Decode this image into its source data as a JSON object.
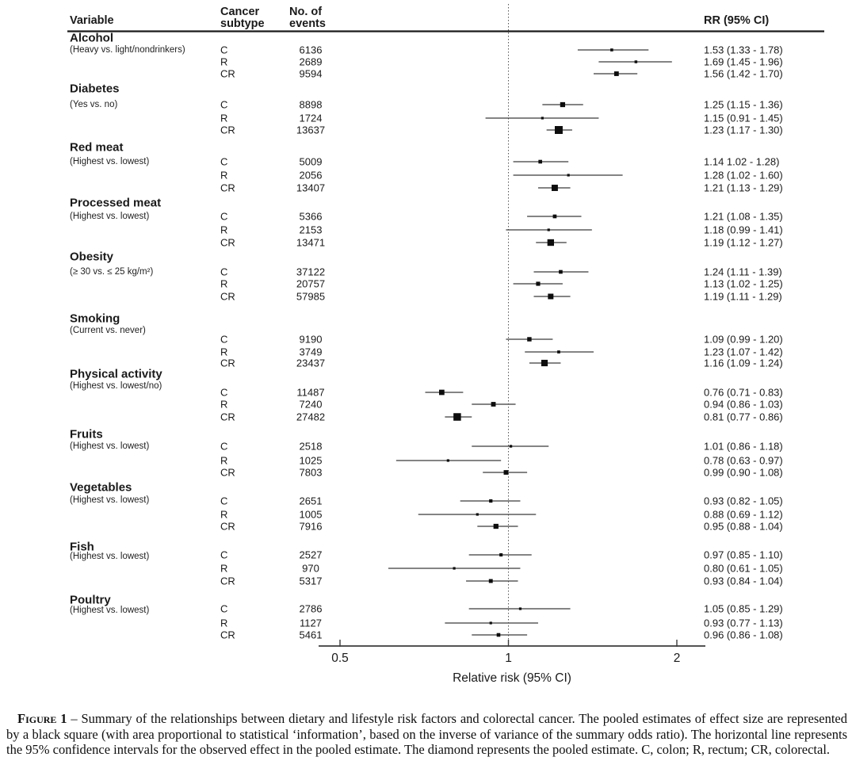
{
  "columns": {
    "variable": "Variable",
    "subtype": "Cancer subtype",
    "events": "No. of events",
    "rr": "RR (95% CI)"
  },
  "caption": {
    "label": "Figure 1",
    "body": "– Summary of the relationships between dietary and lifestyle risk factors and colorectal cancer. The pooled estimates of effect size are represented by a black square (with area proportional to statistical ‘information’, based on the inverse of variance of the summary odds ratio). The horizontal line represents the 95% confidence intervals for the observed effect in the pooled estimate. The diamond represents the pooled estimate. C, colon; R, rectum; CR, colorectal."
  },
  "chart_data": {
    "type": "scatter",
    "variant": "forest-plot",
    "title": "",
    "xlabel": "Relative risk (95% CI)",
    "ylabel": "",
    "x_scale": "log2",
    "xlim": [
      0.45,
      2.25
    ],
    "x_ticks": [
      0.5,
      1,
      2
    ],
    "x_tick_labels": [
      "0.5",
      "1",
      "2"
    ],
    "ref_line": 1,
    "legend": "none",
    "grid": false,
    "groups": [
      {
        "name": "Alcohol",
        "note": "(Heavy vs. light/nondrinkers)",
        "rows": [
          {
            "subtype": "C",
            "events": "6136",
            "rr": 1.53,
            "lo": 1.33,
            "hi": 1.78,
            "rr_label": "1.53 (1.33 - 1.78)"
          },
          {
            "subtype": "R",
            "events": "2689",
            "rr": 1.69,
            "lo": 1.45,
            "hi": 1.96,
            "rr_label": "1.69 (1.45 - 1.96)"
          },
          {
            "subtype": "CR",
            "events": "9594",
            "rr": 1.56,
            "lo": 1.42,
            "hi": 1.7,
            "rr_label": "1.56 (1.42 - 1.70)"
          }
        ]
      },
      {
        "name": "Diabetes",
        "note": "(Yes vs. no)",
        "rows": [
          {
            "subtype": "C",
            "events": "8898",
            "rr": 1.25,
            "lo": 1.15,
            "hi": 1.36,
            "rr_label": "1.25 (1.15 - 1.36)"
          },
          {
            "subtype": "R",
            "events": "1724",
            "rr": 1.15,
            "lo": 0.91,
            "hi": 1.45,
            "rr_label": "1.15 (0.91 - 1.45)"
          },
          {
            "subtype": "CR",
            "events": "13637",
            "rr": 1.23,
            "lo": 1.17,
            "hi": 1.3,
            "rr_label": "1.23 (1.17 - 1.30)"
          }
        ]
      },
      {
        "name": "Red meat",
        "note": "(Highest vs. lowest)",
        "rows": [
          {
            "subtype": "C",
            "events": "5009",
            "rr": 1.14,
            "lo": 1.02,
            "hi": 1.28,
            "rr_label": "1.14 1.02 - 1.28)"
          },
          {
            "subtype": "R",
            "events": "2056",
            "rr": 1.28,
            "lo": 1.02,
            "hi": 1.6,
            "rr_label": "1.28 (1.02 - 1.60)"
          },
          {
            "subtype": "CR",
            "events": "13407",
            "rr": 1.21,
            "lo": 1.13,
            "hi": 1.29,
            "rr_label": "1.21 (1.13 - 1.29)"
          }
        ]
      },
      {
        "name": "Processed meat",
        "note": "(Highest vs. lowest)",
        "rows": [
          {
            "subtype": "C",
            "events": "5366",
            "rr": 1.21,
            "lo": 1.08,
            "hi": 1.35,
            "rr_label": "1.21 (1.08 - 1.35)"
          },
          {
            "subtype": "R",
            "events": "2153",
            "rr": 1.18,
            "lo": 0.99,
            "hi": 1.41,
            "rr_label": "1.18 (0.99 - 1.41)"
          },
          {
            "subtype": "CR",
            "events": "13471",
            "rr": 1.19,
            "lo": 1.12,
            "hi": 1.27,
            "rr_label": "1.19 (1.12 - 1.27)"
          }
        ]
      },
      {
        "name": "Obesity",
        "note": "(≥ 30 vs. ≤ 25 kg/m²)",
        "rows": [
          {
            "subtype": "C",
            "events": "37122",
            "rr": 1.24,
            "lo": 1.11,
            "hi": 1.39,
            "rr_label": "1.24 (1.11 - 1.39)"
          },
          {
            "subtype": "R",
            "events": "20757",
            "rr": 1.13,
            "lo": 1.02,
            "hi": 1.25,
            "rr_label": "1.13 (1.02 - 1.25)"
          },
          {
            "subtype": "CR",
            "events": "57985",
            "rr": 1.19,
            "lo": 1.11,
            "hi": 1.29,
            "rr_label": "1.19 (1.11 - 1.29)"
          }
        ]
      },
      {
        "name": "Smoking",
        "note": "(Current vs. never)",
        "rows": [
          {
            "subtype": "C",
            "events": "9190",
            "rr": 1.09,
            "lo": 0.99,
            "hi": 1.2,
            "rr_label": "1.09 (0.99 - 1.20)"
          },
          {
            "subtype": "R",
            "events": "3749",
            "rr": 1.23,
            "lo": 1.07,
            "hi": 1.42,
            "rr_label": "1.23 (1.07 - 1.42)"
          },
          {
            "subtype": "CR",
            "events": "23437",
            "rr": 1.16,
            "lo": 1.09,
            "hi": 1.24,
            "rr_label": "1.16 (1.09 - 1.24)"
          }
        ]
      },
      {
        "name": "Physical activity",
        "note": "(Highest vs. lowest/no)",
        "rows": [
          {
            "subtype": "C",
            "events": "11487",
            "rr": 0.76,
            "lo": 0.71,
            "hi": 0.83,
            "rr_label": "0.76 (0.71 - 0.83)"
          },
          {
            "subtype": "R",
            "events": "7240",
            "rr": 0.94,
            "lo": 0.86,
            "hi": 1.03,
            "rr_label": "0.94 (0.86 - 1.03)"
          },
          {
            "subtype": "CR",
            "events": "27482",
            "rr": 0.81,
            "lo": 0.77,
            "hi": 0.86,
            "rr_label": "0.81 (0.77 - 0.86)"
          }
        ]
      },
      {
        "name": "Fruits",
        "note": "(Highest vs. lowest)",
        "rows": [
          {
            "subtype": "C",
            "events": "2518",
            "rr": 1.01,
            "lo": 0.86,
            "hi": 1.18,
            "rr_label": "1.01 (0.86 - 1.18)"
          },
          {
            "subtype": "R",
            "events": "1025",
            "rr": 0.78,
            "lo": 0.63,
            "hi": 0.97,
            "rr_label": "0.78 (0.63 - 0.97)"
          },
          {
            "subtype": "CR",
            "events": "7803",
            "rr": 0.99,
            "lo": 0.9,
            "hi": 1.08,
            "rr_label": "0.99 (0.90 - 1.08)"
          }
        ]
      },
      {
        "name": "Vegetables",
        "note": "(Highest vs. lowest)",
        "rows": [
          {
            "subtype": "C",
            "events": "2651",
            "rr": 0.93,
            "lo": 0.82,
            "hi": 1.05,
            "rr_label": "0.93 (0.82 - 1.05)"
          },
          {
            "subtype": "R",
            "events": "1005",
            "rr": 0.88,
            "lo": 0.69,
            "hi": 1.12,
            "rr_label": "0.88 (0.69 - 1.12)"
          },
          {
            "subtype": "CR",
            "events": "7916",
            "rr": 0.95,
            "lo": 0.88,
            "hi": 1.04,
            "rr_label": "0.95 (0.88 - 1.04)"
          }
        ]
      },
      {
        "name": "Fish",
        "note": "(Highest vs. lowest)",
        "rows": [
          {
            "subtype": "C",
            "events": "2527",
            "rr": 0.97,
            "lo": 0.85,
            "hi": 1.1,
            "rr_label": "0.97 (0.85 - 1.10)"
          },
          {
            "subtype": "R",
            "events": "970",
            "rr": 0.8,
            "lo": 0.61,
            "hi": 1.05,
            "rr_label": "0.80 (0.61 - 1.05)"
          },
          {
            "subtype": "CR",
            "events": "5317",
            "rr": 0.93,
            "lo": 0.84,
            "hi": 1.04,
            "rr_label": "0.93 (0.84 - 1.04)"
          }
        ]
      },
      {
        "name": "Poultry",
        "note": "(Highest vs. lowest)",
        "rows": [
          {
            "subtype": "C",
            "events": "2786",
            "rr": 1.05,
            "lo": 0.85,
            "hi": 1.29,
            "rr_label": "1.05 (0.85 - 1.29)"
          },
          {
            "subtype": "R",
            "events": "1127",
            "rr": 0.93,
            "lo": 0.77,
            "hi": 1.13,
            "rr_label": "0.93 (0.77 - 1.13)"
          },
          {
            "subtype": "CR",
            "events": "5461",
            "rr": 0.96,
            "lo": 0.86,
            "hi": 1.08,
            "rr_label": "0.96 (0.86 - 1.08)"
          }
        ]
      }
    ]
  }
}
